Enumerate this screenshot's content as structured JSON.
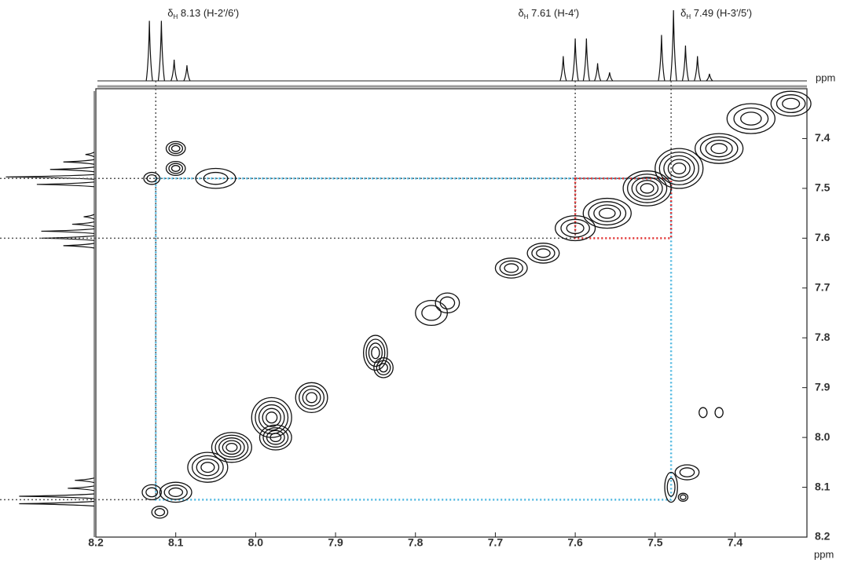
{
  "chart_data": {
    "type": "cosy",
    "xlim": [
      8.2,
      7.31
    ],
    "ylim": [
      7.3,
      8.2
    ],
    "xticks": [
      8.2,
      8.1,
      {
        "value": 8,
        "label": "8.0"
      },
      7.9,
      7.8,
      7.7,
      7.6,
      7.5,
      7.4
    ],
    "yticks": [
      7.4,
      7.5,
      7.6,
      7.7,
      7.8,
      7.9,
      {
        "value": 8,
        "label": "8.0"
      },
      8.1,
      8.2
    ],
    "x_label": "ppm",
    "top_label": "ppm",
    "annotations": [
      {
        "symbol": "δ",
        "sub": "H",
        "text": "8.13 (H-2′/6′)",
        "x": 8.125
      },
      {
        "symbol": "δ",
        "sub": "H",
        "text": "7.61 (H-4′)",
        "x": 7.6
      },
      {
        "symbol": "δ",
        "sub": "H",
        "text": "7.49 (H-3′/5′)",
        "x": 7.48
      }
    ],
    "projection": {
      "shifts": [
        8.133,
        8.118,
        8.102,
        8.086,
        7.615,
        7.6,
        7.586,
        7.572,
        7.557,
        7.492,
        7.477,
        7.462,
        7.447,
        7.432
      ],
      "heights": [
        0.85,
        0.85,
        0.3,
        0.22,
        0.35,
        0.6,
        0.6,
        0.25,
        0.12,
        0.65,
        1.0,
        0.5,
        0.35,
        0.1
      ]
    },
    "links": [
      {
        "from": 8.125,
        "to": 7.48,
        "color": "#4fb8e0"
      },
      {
        "from": 7.6,
        "to": 7.48,
        "color": "#e03030"
      }
    ],
    "peaks": [
      {
        "x": 8.13,
        "y": 8.11,
        "w": 0.012,
        "h": 0.015,
        "levels": 2
      },
      {
        "x": 8.1,
        "y": 8.11,
        "w": 0.02,
        "h": 0.02,
        "levels": 3
      },
      {
        "x": 8.12,
        "y": 8.15,
        "w": 0.01,
        "h": 0.012,
        "levels": 2
      },
      {
        "x": 8.06,
        "y": 8.06,
        "w": 0.025,
        "h": 0.03,
        "levels": 4
      },
      {
        "x": 8.03,
        "y": 8.02,
        "w": 0.025,
        "h": 0.03,
        "levels": 5
      },
      {
        "x": 7.98,
        "y": 7.96,
        "w": 0.025,
        "h": 0.04,
        "levels": 5
      },
      {
        "x": 7.975,
        "y": 8.0,
        "w": 0.02,
        "h": 0.025,
        "levels": 4
      },
      {
        "x": 7.93,
        "y": 7.92,
        "w": 0.02,
        "h": 0.03,
        "levels": 4
      },
      {
        "x": 7.85,
        "y": 7.83,
        "w": 0.015,
        "h": 0.035,
        "levels": 4
      },
      {
        "x": 7.84,
        "y": 7.86,
        "w": 0.012,
        "h": 0.02,
        "levels": 3
      },
      {
        "x": 7.78,
        "y": 7.75,
        "w": 0.02,
        "h": 0.025,
        "levels": 2
      },
      {
        "x": 7.76,
        "y": 7.73,
        "w": 0.015,
        "h": 0.02,
        "levels": 2
      },
      {
        "x": 7.68,
        "y": 7.66,
        "w": 0.02,
        "h": 0.02,
        "levels": 3
      },
      {
        "x": 7.64,
        "y": 7.63,
        "w": 0.02,
        "h": 0.02,
        "levels": 3
      },
      {
        "x": 7.6,
        "y": 7.58,
        "w": 0.025,
        "h": 0.025,
        "levels": 3
      },
      {
        "x": 7.56,
        "y": 7.55,
        "w": 0.03,
        "h": 0.03,
        "levels": 4
      },
      {
        "x": 7.51,
        "y": 7.5,
        "w": 0.03,
        "h": 0.035,
        "levels": 5
      },
      {
        "x": 7.47,
        "y": 7.46,
        "w": 0.03,
        "h": 0.04,
        "levels": 5
      },
      {
        "x": 7.42,
        "y": 7.42,
        "w": 0.03,
        "h": 0.03,
        "levels": 4
      },
      {
        "x": 7.38,
        "y": 7.36,
        "w": 0.03,
        "h": 0.03,
        "levels": 3
      },
      {
        "x": 7.33,
        "y": 7.33,
        "w": 0.025,
        "h": 0.025,
        "levels": 3
      },
      {
        "x": 8.1,
        "y": 7.42,
        "w": 0.012,
        "h": 0.014,
        "levels": 3
      },
      {
        "x": 8.1,
        "y": 7.46,
        "w": 0.012,
        "h": 0.014,
        "levels": 3
      },
      {
        "x": 8.13,
        "y": 7.48,
        "w": 0.01,
        "h": 0.012,
        "levels": 2
      },
      {
        "x": 8.05,
        "y": 7.48,
        "w": 0.025,
        "h": 0.02,
        "levels": 2
      },
      {
        "x": 7.48,
        "y": 8.1,
        "w": 0.008,
        "h": 0.03,
        "levels": 2
      },
      {
        "x": 7.46,
        "y": 8.07,
        "w": 0.015,
        "h": 0.015,
        "levels": 2
      },
      {
        "x": 7.465,
        "y": 8.12,
        "w": 0.006,
        "h": 0.008,
        "levels": 2
      },
      {
        "x": 7.44,
        "y": 7.95,
        "w": 0.005,
        "h": 0.01,
        "levels": 1
      },
      {
        "x": 7.42,
        "y": 7.95,
        "w": 0.005,
        "h": 0.01,
        "levels": 1
      }
    ]
  }
}
